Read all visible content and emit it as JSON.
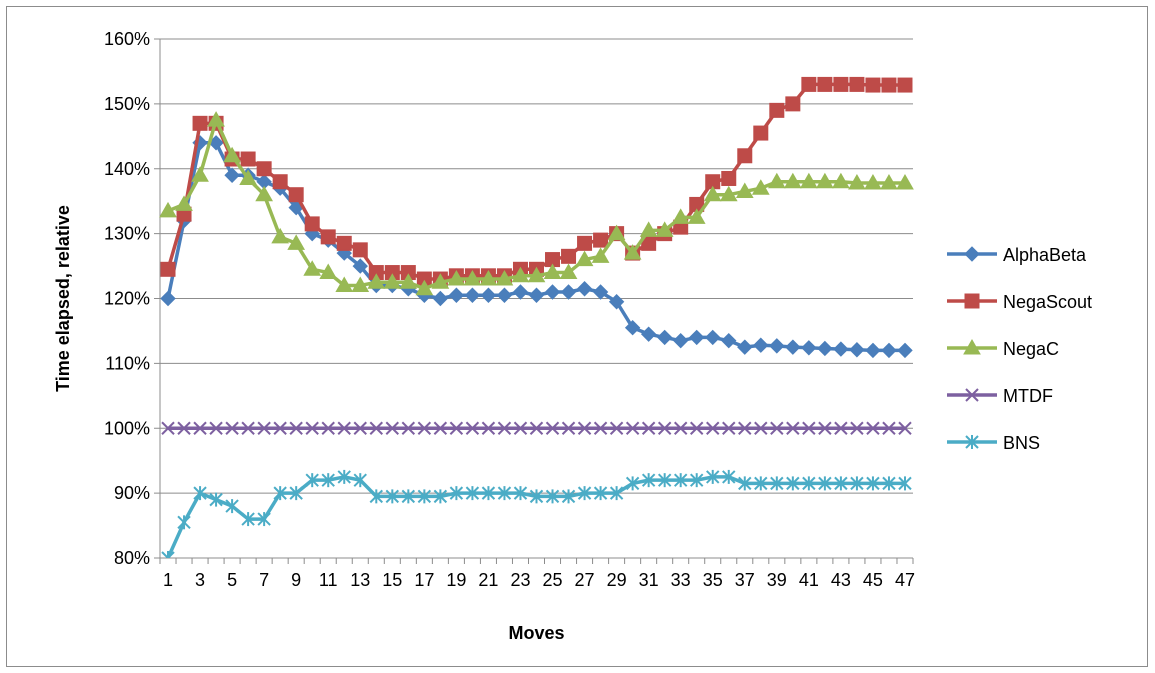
{
  "chart_data": {
    "type": "line",
    "title": "",
    "xlabel": "Moves",
    "ylabel": "Time elapsed, relative",
    "ylim": [
      0.8,
      1.6
    ],
    "yticks": [
      "80%",
      "90%",
      "100%",
      "110%",
      "120%",
      "130%",
      "140%",
      "150%",
      "160%"
    ],
    "yticks_values": [
      0.8,
      0.9,
      1.0,
      1.1,
      1.2,
      1.3,
      1.4,
      1.5,
      1.6
    ],
    "xticks": [
      "1",
      "3",
      "5",
      "7",
      "9",
      "11",
      "13",
      "15",
      "17",
      "19",
      "21",
      "23",
      "25",
      "27",
      "29",
      "31",
      "33",
      "35",
      "37",
      "39",
      "41",
      "43",
      "45",
      "47"
    ],
    "x": [
      1,
      2,
      3,
      4,
      5,
      6,
      7,
      8,
      9,
      10,
      11,
      12,
      13,
      14,
      15,
      16,
      17,
      18,
      19,
      20,
      21,
      22,
      23,
      24,
      25,
      26,
      27,
      28,
      29,
      30,
      31,
      32,
      33,
      34,
      35,
      36,
      37,
      38,
      39,
      40,
      41,
      42,
      43,
      44,
      45,
      46,
      47
    ],
    "grid": "horizontal",
    "legend_position": "right",
    "series": [
      {
        "name": "AlphaBeta",
        "color": "#4A7EBB",
        "marker": "diamond",
        "values": [
          1.2,
          1.32,
          1.44,
          1.44,
          1.39,
          1.39,
          1.38,
          1.37,
          1.34,
          1.3,
          1.29,
          1.27,
          1.25,
          1.22,
          1.22,
          1.215,
          1.205,
          1.2,
          1.205,
          1.205,
          1.205,
          1.205,
          1.21,
          1.205,
          1.21,
          1.21,
          1.215,
          1.21,
          1.195,
          1.155,
          1.145,
          1.14,
          1.135,
          1.14,
          1.14,
          1.135,
          1.125,
          1.128,
          1.127,
          1.125,
          1.124,
          1.123,
          1.122,
          1.121,
          1.12,
          1.12,
          1.12
        ]
      },
      {
        "name": "NegaScout",
        "color": "#BE4B48",
        "marker": "square",
        "values": [
          1.245,
          1.33,
          1.47,
          1.47,
          1.415,
          1.415,
          1.4,
          1.38,
          1.36,
          1.315,
          1.295,
          1.285,
          1.275,
          1.24,
          1.24,
          1.24,
          1.23,
          1.23,
          1.235,
          1.235,
          1.235,
          1.235,
          1.245,
          1.245,
          1.26,
          1.265,
          1.285,
          1.29,
          1.3,
          1.27,
          1.285,
          1.3,
          1.31,
          1.345,
          1.38,
          1.385,
          1.42,
          1.455,
          1.49,
          1.5,
          1.53,
          1.53,
          1.53,
          1.53,
          1.529,
          1.529,
          1.529
        ]
      },
      {
        "name": "NegaC",
        "color": "#98B954",
        "marker": "triangle",
        "values": [
          1.335,
          1.345,
          1.39,
          1.475,
          1.42,
          1.385,
          1.36,
          1.295,
          1.285,
          1.245,
          1.24,
          1.22,
          1.22,
          1.225,
          1.225,
          1.225,
          1.215,
          1.225,
          1.23,
          1.23,
          1.23,
          1.23,
          1.235,
          1.235,
          1.24,
          1.24,
          1.26,
          1.265,
          1.3,
          1.27,
          1.305,
          1.305,
          1.325,
          1.325,
          1.36,
          1.36,
          1.365,
          1.37,
          1.38,
          1.38,
          1.38,
          1.38,
          1.38,
          1.378,
          1.378,
          1.378,
          1.378
        ]
      },
      {
        "name": "MTDF",
        "color": "#7D60A0",
        "marker": "x",
        "values": [
          1.0,
          1.0,
          1.0,
          1.0,
          1.0,
          1.0,
          1.0,
          1.0,
          1.0,
          1.0,
          1.0,
          1.0,
          1.0,
          1.0,
          1.0,
          1.0,
          1.0,
          1.0,
          1.0,
          1.0,
          1.0,
          1.0,
          1.0,
          1.0,
          1.0,
          1.0,
          1.0,
          1.0,
          1.0,
          1.0,
          1.0,
          1.0,
          1.0,
          1.0,
          1.0,
          1.0,
          1.0,
          1.0,
          1.0,
          1.0,
          1.0,
          1.0,
          1.0,
          1.0,
          1.0,
          1.0,
          1.0
        ]
      },
      {
        "name": "BNS",
        "color": "#4BACC6",
        "marker": "star",
        "values": [
          0.8,
          0.855,
          0.9,
          0.89,
          0.88,
          0.86,
          0.86,
          0.9,
          0.9,
          0.92,
          0.92,
          0.925,
          0.92,
          0.895,
          0.895,
          0.895,
          0.895,
          0.895,
          0.9,
          0.9,
          0.9,
          0.9,
          0.9,
          0.895,
          0.895,
          0.895,
          0.9,
          0.9,
          0.9,
          0.915,
          0.92,
          0.92,
          0.92,
          0.92,
          0.925,
          0.925,
          0.915,
          0.915,
          0.915,
          0.915,
          0.915,
          0.915,
          0.915,
          0.915,
          0.915,
          0.915,
          0.915
        ]
      }
    ]
  }
}
